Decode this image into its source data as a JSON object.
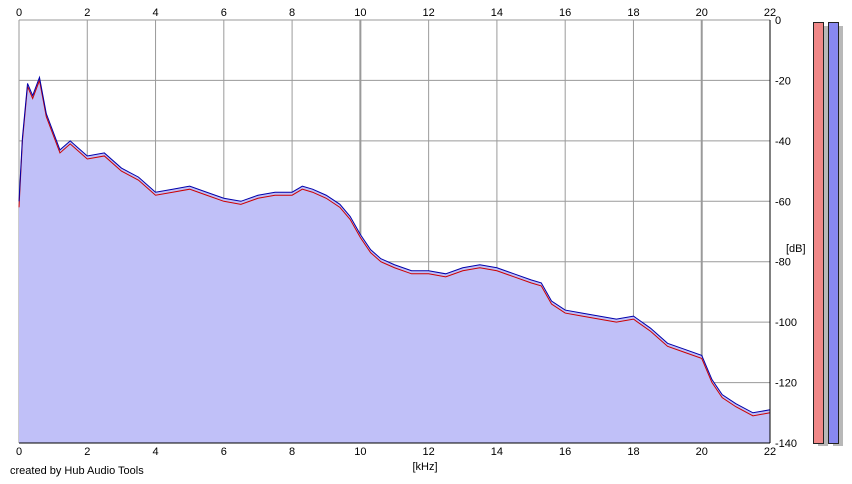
{
  "chart_data": {
    "type": "area",
    "title": "",
    "xlabel": "[kHz]",
    "ylabel": "[dB]",
    "xlim": [
      0,
      22
    ],
    "ylim": [
      -140,
      0
    ],
    "x_ticks": [
      0,
      2,
      4,
      6,
      8,
      10,
      12,
      14,
      16,
      18,
      20,
      22
    ],
    "y_ticks": [
      0,
      -20,
      -40,
      -60,
      -80,
      -100,
      -120,
      -140
    ],
    "x_ticks_top": true,
    "grid": true,
    "legend": "none",
    "fill_color": "#c0c0f8",
    "series": [
      {
        "color": "#cc0000",
        "x": [
          0,
          0.1,
          0.25,
          0.4,
          0.6,
          0.8,
          1.0,
          1.2,
          1.5,
          2.0,
          2.5,
          3.0,
          3.5,
          4.0,
          4.5,
          5.0,
          5.5,
          6.0,
          6.5,
          7.0,
          7.5,
          8.0,
          8.3,
          8.6,
          9.0,
          9.4,
          9.7,
          10.0,
          10.3,
          10.6,
          11.0,
          11.5,
          12.0,
          12.5,
          13.0,
          13.5,
          14.0,
          14.5,
          15.0,
          15.3,
          15.6,
          16.0,
          16.5,
          17.0,
          17.5,
          18.0,
          18.5,
          19.0,
          19.5,
          20.0,
          20.3,
          20.6,
          21.0,
          21.5,
          22.0
        ],
        "y": [
          -62,
          -40,
          -22,
          -26,
          -20,
          -32,
          -38,
          -44,
          -41,
          -46,
          -45,
          -50,
          -53,
          -58,
          -57,
          -56,
          -58,
          -60,
          -61,
          -59,
          -58,
          -58,
          -56,
          -57,
          -59,
          -62,
          -66,
          -72,
          -77,
          -80,
          -82,
          -84,
          -84,
          -85,
          -83,
          -82,
          -83,
          -85,
          -87,
          -88,
          -94,
          -97,
          -98,
          -99,
          -100,
          -99,
          -103,
          -108,
          -110,
          -112,
          -120,
          -125,
          -128,
          -131,
          -130
        ]
      },
      {
        "color": "#0000aa",
        "x": [
          0,
          0.1,
          0.25,
          0.4,
          0.6,
          0.8,
          1.0,
          1.2,
          1.5,
          2.0,
          2.5,
          3.0,
          3.5,
          4.0,
          4.5,
          5.0,
          5.5,
          6.0,
          6.5,
          7.0,
          7.5,
          8.0,
          8.3,
          8.6,
          9.0,
          9.4,
          9.7,
          10.0,
          10.3,
          10.6,
          11.0,
          11.5,
          12.0,
          12.5,
          13.0,
          13.5,
          14.0,
          14.5,
          15.0,
          15.3,
          15.6,
          16.0,
          16.5,
          17.0,
          17.5,
          18.0,
          18.5,
          19.0,
          19.5,
          20.0,
          20.3,
          20.6,
          21.0,
          21.5,
          22.0
        ],
        "y": [
          -60,
          -39,
          -21,
          -25,
          -19,
          -31,
          -37,
          -43,
          -40,
          -45,
          -44,
          -49,
          -52,
          -57,
          -56,
          -55,
          -57,
          -59,
          -60,
          -58,
          -57,
          -57,
          -55,
          -56,
          -58,
          -61,
          -65,
          -71,
          -76,
          -79,
          -81,
          -83,
          -83,
          -84,
          -82,
          -81,
          -82,
          -84,
          -86,
          -87,
          -93,
          -96,
          -97,
          -98,
          -99,
          -98,
          -102,
          -107,
          -109,
          -111,
          -119,
          -124,
          -127,
          -130,
          -129
        ]
      }
    ]
  },
  "credit": "created by Hub Audio Tools",
  "meters": [
    {
      "color": "#f08888"
    },
    {
      "color": "#8888f0"
    }
  ]
}
